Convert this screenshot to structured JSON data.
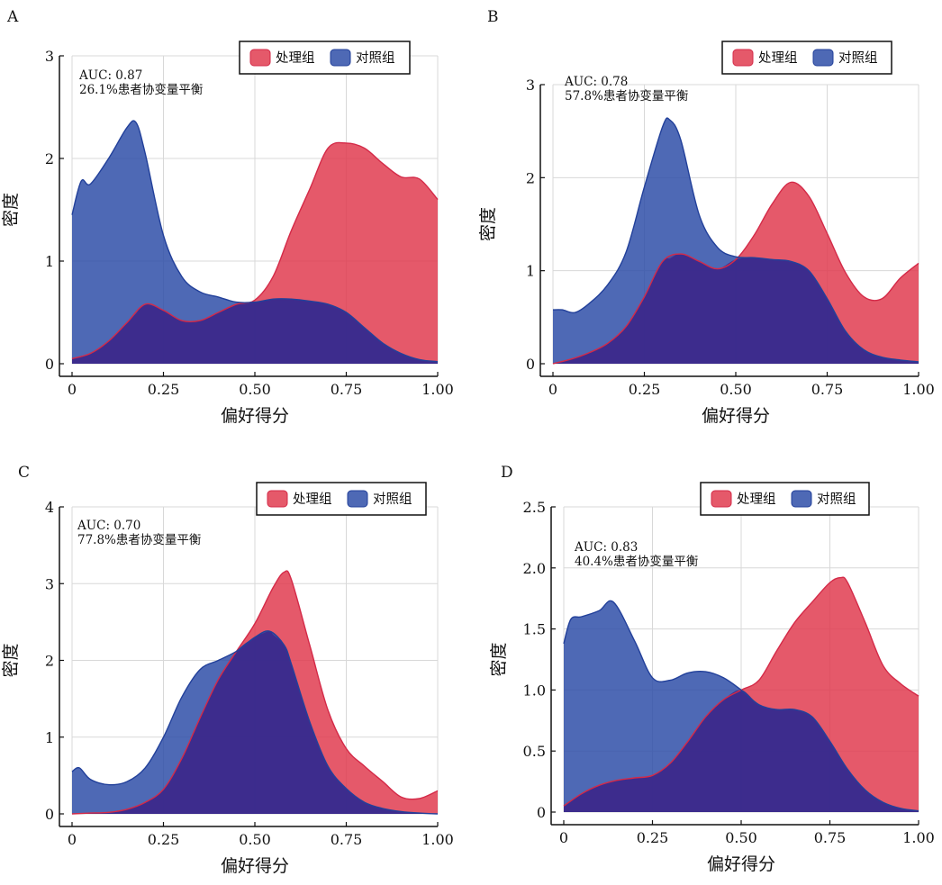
{
  "colors": {
    "treated": "#e03c50",
    "control": "#2f4fa8",
    "overlap": "#3c2a8c",
    "treated_line": "#d42a48",
    "control_line": "#22409a",
    "grid": "#d8d8d8",
    "axis": "#111111"
  },
  "legend": {
    "treated": "处理组",
    "control": "对照组",
    "placement": "top-right"
  },
  "chart_data": [
    {
      "panel": "A",
      "type": "area",
      "xlabel": "偏好得分",
      "ylabel": "密度",
      "xlim": [
        0,
        1
      ],
      "ylim": [
        0,
        3
      ],
      "xticks": [
        0,
        0.25,
        0.5,
        0.75,
        1.0
      ],
      "xtick_labels": [
        "0",
        "0.25",
        "0.50",
        "0.75",
        "1.00"
      ],
      "yticks": [
        0,
        1,
        2,
        3
      ],
      "ytick_labels": [
        "0",
        "1",
        "2",
        "3"
      ],
      "grid": true,
      "annotation": [
        "AUC: 0.87",
        "26.1%患者协变量平衡"
      ],
      "series": [
        {
          "name": "处理组",
          "x": [
            0,
            0.05,
            0.1,
            0.15,
            0.2,
            0.25,
            0.3,
            0.35,
            0.4,
            0.45,
            0.5,
            0.55,
            0.6,
            0.65,
            0.7,
            0.75,
            0.8,
            0.85,
            0.9,
            0.95,
            1.0
          ],
          "values": [
            0.05,
            0.1,
            0.22,
            0.4,
            0.58,
            0.52,
            0.42,
            0.42,
            0.5,
            0.58,
            0.62,
            0.85,
            1.3,
            1.7,
            2.1,
            2.15,
            2.1,
            1.95,
            1.82,
            1.8,
            1.6
          ]
        },
        {
          "name": "对照组",
          "x": [
            0,
            0.025,
            0.05,
            0.1,
            0.15,
            0.175,
            0.2,
            0.25,
            0.3,
            0.35,
            0.4,
            0.45,
            0.5,
            0.55,
            0.6,
            0.65,
            0.7,
            0.75,
            0.8,
            0.85,
            0.9,
            0.95,
            1.0
          ],
          "values": [
            1.45,
            1.78,
            1.75,
            2.0,
            2.3,
            2.35,
            2.05,
            1.25,
            0.85,
            0.7,
            0.65,
            0.6,
            0.6,
            0.63,
            0.63,
            0.61,
            0.58,
            0.5,
            0.35,
            0.2,
            0.1,
            0.04,
            0.02
          ]
        }
      ]
    },
    {
      "panel": "B",
      "type": "area",
      "xlabel": "偏好得分",
      "ylabel": "密度",
      "xlim": [
        0,
        1
      ],
      "ylim": [
        0,
        3
      ],
      "xticks": [
        0,
        0.25,
        0.5,
        0.75,
        1.0
      ],
      "xtick_labels": [
        "0",
        "0.25",
        "0.50",
        "0.75",
        "1.00"
      ],
      "yticks": [
        0,
        1,
        2,
        3
      ],
      "ytick_labels": [
        "0",
        "1",
        "2",
        "3"
      ],
      "grid": true,
      "annotation": [
        "AUC: 0.78",
        "57.8%患者协变量平衡"
      ],
      "series": [
        {
          "name": "处理组",
          "x": [
            0,
            0.05,
            0.1,
            0.15,
            0.2,
            0.25,
            0.3,
            0.35,
            0.4,
            0.45,
            0.5,
            0.55,
            0.6,
            0.65,
            0.7,
            0.75,
            0.8,
            0.85,
            0.9,
            0.95,
            1.0
          ],
          "values": [
            0.0,
            0.05,
            0.12,
            0.22,
            0.4,
            0.72,
            1.1,
            1.18,
            1.1,
            1.02,
            1.12,
            1.38,
            1.72,
            1.95,
            1.8,
            1.4,
            0.98,
            0.72,
            0.7,
            0.92,
            1.08
          ]
        },
        {
          "name": "对照组",
          "x": [
            0,
            0.025,
            0.06,
            0.1,
            0.15,
            0.2,
            0.25,
            0.3,
            0.32,
            0.35,
            0.4,
            0.45,
            0.5,
            0.55,
            0.6,
            0.65,
            0.7,
            0.75,
            0.8,
            0.85,
            0.9,
            0.95,
            1.0
          ],
          "values": [
            0.58,
            0.58,
            0.55,
            0.65,
            0.85,
            1.2,
            1.9,
            2.55,
            2.62,
            2.4,
            1.6,
            1.25,
            1.15,
            1.14,
            1.12,
            1.1,
            1.0,
            0.7,
            0.35,
            0.15,
            0.07,
            0.04,
            0.02
          ]
        }
      ]
    },
    {
      "panel": "C",
      "type": "area",
      "xlabel": "偏好得分",
      "ylabel": "密度",
      "xlim": [
        0,
        1
      ],
      "ylim": [
        0,
        4
      ],
      "xticks": [
        0,
        0.25,
        0.5,
        0.75,
        1.0
      ],
      "xtick_labels": [
        "0",
        "0.25",
        "0.50",
        "0.75",
        "1.00"
      ],
      "yticks": [
        0,
        1,
        2,
        3,
        4
      ],
      "ytick_labels": [
        "0",
        "1",
        "2",
        "3",
        "4"
      ],
      "grid": true,
      "annotation": [
        "AUC: 0.70",
        "77.8%患者协变量平衡"
      ],
      "series": [
        {
          "name": "处理组",
          "x": [
            0,
            0.05,
            0.1,
            0.15,
            0.2,
            0.25,
            0.3,
            0.35,
            0.4,
            0.45,
            0.5,
            0.55,
            0.58,
            0.6,
            0.65,
            0.7,
            0.75,
            0.8,
            0.85,
            0.9,
            0.95,
            1.0
          ],
          "values": [
            0.0,
            0.01,
            0.02,
            0.06,
            0.15,
            0.32,
            0.72,
            1.25,
            1.75,
            2.12,
            2.48,
            2.95,
            3.15,
            3.05,
            2.2,
            1.35,
            0.85,
            0.62,
            0.42,
            0.22,
            0.2,
            0.3
          ]
        },
        {
          "name": "对照组",
          "x": [
            0,
            0.02,
            0.05,
            0.1,
            0.15,
            0.2,
            0.25,
            0.3,
            0.35,
            0.4,
            0.45,
            0.5,
            0.54,
            0.58,
            0.6,
            0.65,
            0.7,
            0.75,
            0.8,
            0.85,
            0.9,
            0.95,
            1.0
          ],
          "values": [
            0.55,
            0.6,
            0.45,
            0.38,
            0.42,
            0.6,
            1.0,
            1.52,
            1.88,
            2.0,
            2.12,
            2.3,
            2.38,
            2.2,
            1.95,
            1.2,
            0.62,
            0.33,
            0.15,
            0.07,
            0.03,
            0.01,
            0.0
          ]
        }
      ]
    },
    {
      "panel": "D",
      "type": "area",
      "xlabel": "偏好得分",
      "ylabel": "密度",
      "xlim": [
        0,
        1
      ],
      "ylim": [
        0,
        2.5
      ],
      "xticks": [
        0,
        0.25,
        0.5,
        0.75,
        1.0
      ],
      "xtick_labels": [
        "0",
        "0.25",
        "0.50",
        "0.75",
        "1.00"
      ],
      "yticks": [
        0,
        0.5,
        1.0,
        1.5,
        2.0,
        2.5
      ],
      "ytick_labels": [
        "0",
        "0.5",
        "1.0",
        "1.5",
        "2.0",
        "2.5"
      ],
      "grid": true,
      "annotation": [
        "AUC: 0.83",
        "40.4%患者协变量平衡"
      ],
      "series": [
        {
          "name": "处理组",
          "x": [
            0,
            0.05,
            0.1,
            0.15,
            0.2,
            0.25,
            0.3,
            0.35,
            0.4,
            0.45,
            0.5,
            0.55,
            0.6,
            0.65,
            0.7,
            0.75,
            0.78,
            0.8,
            0.85,
            0.9,
            0.95,
            1.0
          ],
          "values": [
            0.05,
            0.15,
            0.22,
            0.26,
            0.28,
            0.3,
            0.4,
            0.58,
            0.78,
            0.92,
            1.0,
            1.08,
            1.32,
            1.55,
            1.72,
            1.88,
            1.92,
            1.88,
            1.55,
            1.2,
            1.05,
            0.95
          ]
        },
        {
          "name": "对照组",
          "x": [
            0,
            0.02,
            0.05,
            0.1,
            0.14,
            0.2,
            0.25,
            0.3,
            0.35,
            0.4,
            0.45,
            0.5,
            0.55,
            0.6,
            0.65,
            0.7,
            0.75,
            0.8,
            0.85,
            0.9,
            0.95,
            1.0
          ],
          "values": [
            1.38,
            1.58,
            1.6,
            1.65,
            1.72,
            1.4,
            1.1,
            1.08,
            1.14,
            1.15,
            1.1,
            1.0,
            0.88,
            0.84,
            0.84,
            0.78,
            0.58,
            0.35,
            0.18,
            0.08,
            0.03,
            0.01
          ]
        }
      ]
    }
  ]
}
